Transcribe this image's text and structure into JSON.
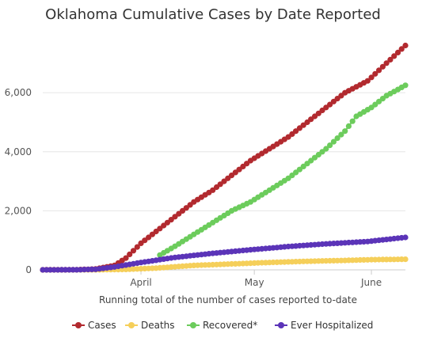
{
  "chart_data": {
    "type": "line",
    "title": "Oklahoma Cumulative Cases by Date Reported",
    "xlabel": "Running total of the number of cases reported to-date",
    "ylabel": "",
    "x_start": "2020-03-06",
    "x_end": "2020-06-10",
    "x_ticks": [
      {
        "date": "2020-04-01",
        "label": "April"
      },
      {
        "date": "2020-05-01",
        "label": "May"
      },
      {
        "date": "2020-06-01",
        "label": "June"
      }
    ],
    "ylim": [
      0,
      7800
    ],
    "y_ticks": [
      {
        "value": 0,
        "label": "0"
      },
      {
        "value": 2000,
        "label": "2,000"
      },
      {
        "value": 4000,
        "label": "4,000"
      },
      {
        "value": 6000,
        "label": "6,000"
      }
    ],
    "grid": "horizontal",
    "legend_position": "bottom",
    "series": [
      {
        "name": "Cases",
        "color": "#b22a2f",
        "points": [
          [
            "2020-03-06",
            1
          ],
          [
            "2020-03-15",
            5
          ],
          [
            "2020-03-20",
            30
          ],
          [
            "2020-03-25",
            150
          ],
          [
            "2020-03-28",
            400
          ],
          [
            "2020-04-01",
            900
          ],
          [
            "2020-04-05",
            1300
          ],
          [
            "2020-04-10",
            1800
          ],
          [
            "2020-04-15",
            2300
          ],
          [
            "2020-04-20",
            2700
          ],
          [
            "2020-04-25",
            3200
          ],
          [
            "2020-04-30",
            3700
          ],
          [
            "2020-05-05",
            4100
          ],
          [
            "2020-05-10",
            4500
          ],
          [
            "2020-05-15",
            5000
          ],
          [
            "2020-05-20",
            5500
          ],
          [
            "2020-05-25",
            6000
          ],
          [
            "2020-05-31",
            6400
          ],
          [
            "2020-06-05",
            7000
          ],
          [
            "2020-06-10",
            7600
          ]
        ]
      },
      {
        "name": "Deaths",
        "color": "#f5cf5a",
        "points": [
          [
            "2020-03-06",
            0
          ],
          [
            "2020-03-20",
            2
          ],
          [
            "2020-03-28",
            15
          ],
          [
            "2020-04-05",
            60
          ],
          [
            "2020-04-15",
            150
          ],
          [
            "2020-04-25",
            200
          ],
          [
            "2020-05-05",
            250
          ],
          [
            "2020-05-15",
            290
          ],
          [
            "2020-05-25",
            320
          ],
          [
            "2020-06-01",
            345
          ],
          [
            "2020-06-10",
            360
          ]
        ]
      },
      {
        "name": "Recovered*",
        "color": "#6ccc5c",
        "points": [
          [
            "2020-04-06",
            500
          ],
          [
            "2020-04-10",
            800
          ],
          [
            "2020-04-15",
            1200
          ],
          [
            "2020-04-20",
            1600
          ],
          [
            "2020-04-25",
            2000
          ],
          [
            "2020-04-30",
            2300
          ],
          [
            "2020-05-05",
            2700
          ],
          [
            "2020-05-10",
            3100
          ],
          [
            "2020-05-15",
            3600
          ],
          [
            "2020-05-20",
            4100
          ],
          [
            "2020-05-25",
            4700
          ],
          [
            "2020-05-28",
            5200
          ],
          [
            "2020-06-01",
            5500
          ],
          [
            "2020-06-05",
            5900
          ],
          [
            "2020-06-10",
            6250
          ]
        ]
      },
      {
        "name": "Ever Hospitalized",
        "color": "#5b34b8",
        "points": [
          [
            "2020-03-06",
            0
          ],
          [
            "2020-03-15",
            3
          ],
          [
            "2020-03-20",
            20
          ],
          [
            "2020-03-25",
            100
          ],
          [
            "2020-04-01",
            250
          ],
          [
            "2020-04-10",
            420
          ],
          [
            "2020-04-20",
            560
          ],
          [
            "2020-04-30",
            680
          ],
          [
            "2020-05-10",
            790
          ],
          [
            "2020-05-20",
            880
          ],
          [
            "2020-05-31",
            960
          ],
          [
            "2020-06-10",
            1100
          ]
        ]
      }
    ]
  }
}
